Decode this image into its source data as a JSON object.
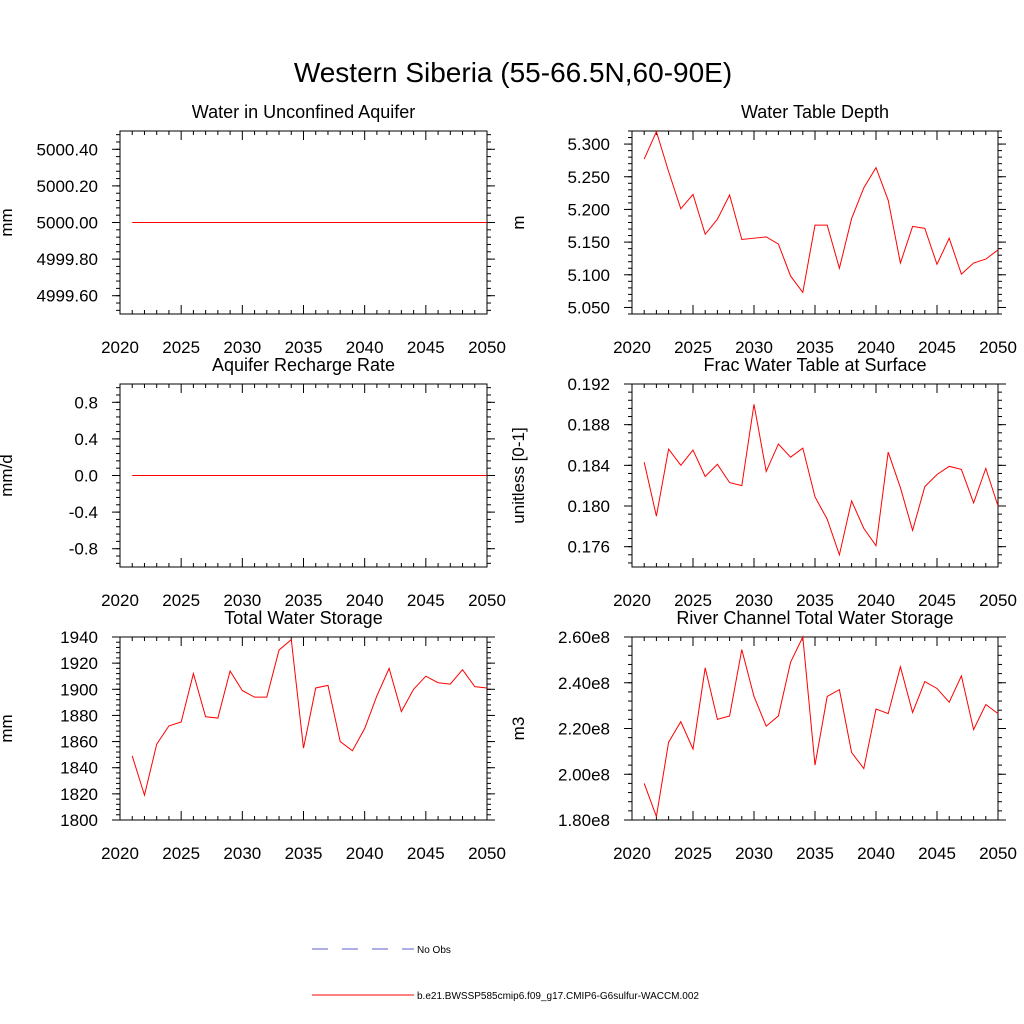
{
  "figure": {
    "title": "Western Siberia (55-66.5N,60-90E)"
  },
  "legend": {
    "entries": [
      {
        "label": "No Obs",
        "color": "#5b5bd0",
        "dash": true
      },
      {
        "label": "b.e21.BWSSP585cmip6.f09_g17.CMIP6-G6sulfur-WACCM.002",
        "color": "#ff0000",
        "dash": false
      }
    ]
  },
  "chart_data": [
    {
      "type": "line",
      "title": "Water in Unconfined Aquifer",
      "ylabel": "mm",
      "xlim": [
        2020,
        2050
      ],
      "ylim": [
        4999.5,
        5000.5
      ],
      "xticks": [
        2020,
        2025,
        2030,
        2035,
        2040,
        2045,
        2050
      ],
      "yticks": [
        4999.6,
        4999.8,
        5000.0,
        5000.2,
        5000.4
      ],
      "ytick_labels": [
        "4999.60",
        "4999.80",
        "5000.00",
        "5000.20",
        "5000.40"
      ],
      "series": [
        {
          "color": "#ff0000",
          "x": [
            2021,
            2050
          ],
          "values": [
            5000.0,
            5000.0
          ]
        }
      ]
    },
    {
      "type": "line",
      "title": "Water Table Depth",
      "ylabel": "m",
      "xlim": [
        2020,
        2050
      ],
      "ylim": [
        5.04,
        5.32
      ],
      "xticks": [
        2020,
        2025,
        2030,
        2035,
        2040,
        2045,
        2050
      ],
      "yticks": [
        5.05,
        5.1,
        5.15,
        5.2,
        5.25,
        5.3
      ],
      "ytick_labels": [
        "5.050",
        "5.100",
        "5.150",
        "5.200",
        "5.250",
        "5.300"
      ],
      "series": [
        {
          "color": "#ff0000",
          "x": [
            2021,
            2022,
            2023,
            2024,
            2025,
            2026,
            2027,
            2028,
            2029,
            2030,
            2031,
            2032,
            2033,
            2034,
            2035,
            2036,
            2037,
            2038,
            2039,
            2040,
            2041,
            2042,
            2043,
            2044,
            2045,
            2046,
            2047,
            2048,
            2049,
            2050
          ],
          "values": [
            5.277,
            5.319,
            5.258,
            5.201,
            5.223,
            5.162,
            5.185,
            5.222,
            5.154,
            5.156,
            5.158,
            5.147,
            5.098,
            5.073,
            5.176,
            5.176,
            5.11,
            5.186,
            5.233,
            5.264,
            5.214,
            5.118,
            5.174,
            5.171,
            5.116,
            5.156,
            5.101,
            5.118,
            5.124,
            5.138
          ]
        }
      ]
    },
    {
      "type": "line",
      "title": "Aquifer Recharge Rate",
      "ylabel": "mm/d",
      "xlim": [
        2020,
        2050
      ],
      "ylim": [
        -1.0,
        1.0
      ],
      "xticks": [
        2020,
        2025,
        2030,
        2035,
        2040,
        2045,
        2050
      ],
      "yticks": [
        -0.8,
        -0.4,
        0.0,
        0.4,
        0.8
      ],
      "ytick_labels": [
        "-0.8",
        "-0.4",
        "0.0",
        "0.4",
        "0.8"
      ],
      "series": [
        {
          "color": "#ff0000",
          "x": [
            2021,
            2050
          ],
          "values": [
            0.0,
            0.0
          ]
        }
      ]
    },
    {
      "type": "line",
      "title": "Frac Water Table at Surface",
      "ylabel": "unitless [0-1]",
      "xlim": [
        2020,
        2050
      ],
      "ylim": [
        0.174,
        0.192
      ],
      "xticks": [
        2020,
        2025,
        2030,
        2035,
        2040,
        2045,
        2050
      ],
      "yticks": [
        0.176,
        0.18,
        0.184,
        0.188,
        0.192
      ],
      "ytick_labels": [
        "0.176",
        "0.180",
        "0.184",
        "0.188",
        "0.192"
      ],
      "series": [
        {
          "color": "#ff0000",
          "x": [
            2021,
            2022,
            2023,
            2024,
            2025,
            2026,
            2027,
            2028,
            2029,
            2030,
            2031,
            2032,
            2033,
            2034,
            2035,
            2036,
            2037,
            2038,
            2039,
            2040,
            2041,
            2042,
            2043,
            2044,
            2045,
            2046,
            2047,
            2048,
            2049,
            2050
          ],
          "values": [
            0.1843,
            0.179,
            0.1856,
            0.184,
            0.1855,
            0.1829,
            0.1841,
            0.1823,
            0.182,
            0.19,
            0.1834,
            0.1861,
            0.1848,
            0.1857,
            0.1809,
            0.1787,
            0.1752,
            0.1805,
            0.1778,
            0.1761,
            0.1853,
            0.1818,
            0.1776,
            0.1819,
            0.1831,
            0.1839,
            0.1836,
            0.1803,
            0.1837,
            0.18
          ]
        }
      ]
    },
    {
      "type": "line",
      "title": "Total Water Storage",
      "ylabel": "mm",
      "xlim": [
        2020,
        2050
      ],
      "ylim": [
        1800,
        1940
      ],
      "xticks": [
        2020,
        2025,
        2030,
        2035,
        2040,
        2045,
        2050
      ],
      "yticks": [
        1800,
        1820,
        1840,
        1860,
        1880,
        1900,
        1920,
        1940
      ],
      "ytick_labels": [
        "1800",
        "1820",
        "1840",
        "1860",
        "1880",
        "1900",
        "1920",
        "1940"
      ],
      "series": [
        {
          "color": "#ff0000",
          "x": [
            2021,
            2022,
            2023,
            2024,
            2025,
            2026,
            2027,
            2028,
            2029,
            2030,
            2031,
            2032,
            2033,
            2034,
            2035,
            2036,
            2037,
            2038,
            2039,
            2040,
            2041,
            2042,
            2043,
            2044,
            2045,
            2046,
            2047,
            2048,
            2049,
            2050
          ],
          "values": [
            1849,
            1819,
            1858,
            1872,
            1875,
            1912,
            1879,
            1878,
            1914,
            1899,
            1894,
            1894,
            1930,
            1938,
            1855,
            1901,
            1903,
            1860,
            1853,
            1870,
            1895,
            1916,
            1883,
            1900,
            1910,
            1905,
            1904,
            1915,
            1902,
            1901
          ]
        }
      ]
    },
    {
      "type": "line",
      "title": "River Channel Total Water Storage",
      "ylabel": "m3",
      "xlim": [
        2020,
        2050
      ],
      "ylim": [
        180000000,
        260000000
      ],
      "xticks": [
        2020,
        2025,
        2030,
        2035,
        2040,
        2045,
        2050
      ],
      "yticks": [
        180000000,
        200000000,
        220000000,
        240000000,
        260000000
      ],
      "ytick_labels": [
        "1.80e8",
        "2.00e8",
        "2.20e8",
        "2.40e8",
        "2.60e8"
      ],
      "series": [
        {
          "color": "#ff0000",
          "x": [
            2021,
            2022,
            2023,
            2024,
            2025,
            2026,
            2027,
            2028,
            2029,
            2030,
            2031,
            2032,
            2033,
            2034,
            2035,
            2036,
            2037,
            2038,
            2039,
            2040,
            2041,
            2042,
            2043,
            2044,
            2045,
            2046,
            2047,
            2048,
            2049,
            2050
          ],
          "values": [
            196000000,
            181500000,
            214000000,
            223000000,
            211000000,
            246500000,
            224000000,
            225500000,
            254500000,
            234000000,
            221000000,
            225500000,
            249000000,
            260000000,
            204000000,
            234000000,
            237000000,
            209500000,
            202500000,
            228500000,
            226500000,
            247000000,
            227000000,
            240500000,
            237500000,
            231500000,
            243000000,
            219500000,
            230500000,
            226500000
          ]
        }
      ]
    }
  ]
}
